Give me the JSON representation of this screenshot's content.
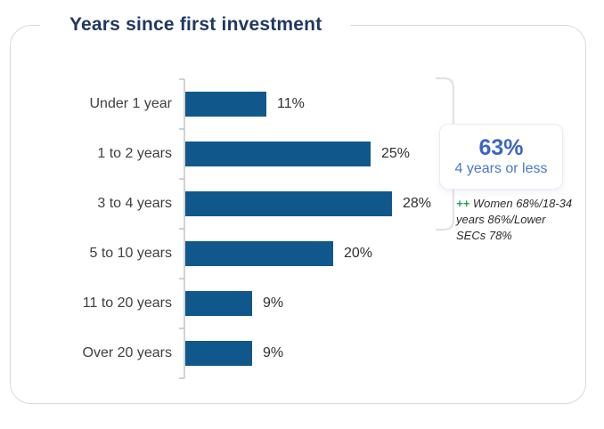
{
  "title": {
    "text": "Years since first investment"
  },
  "chart_data": {
    "type": "bar",
    "orientation": "horizontal",
    "title": "Years since first investment",
    "categories": [
      "Under 1 year",
      "1 to 2 years",
      "3 to 4 years",
      "5 to 10 years",
      "11 to 20 years",
      "Over 20 years"
    ],
    "values": [
      11,
      25,
      28,
      20,
      9,
      9
    ],
    "value_labels": [
      "11%",
      "25%",
      "28%",
      "20%",
      "9%",
      "9%"
    ],
    "xlabel": "",
    "ylabel": "",
    "xlim": [
      0,
      30
    ],
    "grid": false,
    "legend": "none",
    "data_labels": "outside-end"
  },
  "callout": {
    "value": "63%",
    "label": "4 years or less",
    "bracket_covers": [
      "Under 1 year",
      "1 to 2 years",
      "3 to 4 years"
    ]
  },
  "annotation": {
    "marker": "++",
    "text": "Women 68%/18-34 years 86%/Lower SECs 78%"
  },
  "colors": {
    "bar": "#10588c",
    "title": "#1f3864",
    "callout_value": "#3a67c2",
    "callout_label": "#4878cc",
    "annotation_marker": "#21a353",
    "axis": "#b9b9b9",
    "bracket": "#e2e2e2",
    "card_border": "#d9d9d9",
    "text": "#3f3f3f"
  }
}
